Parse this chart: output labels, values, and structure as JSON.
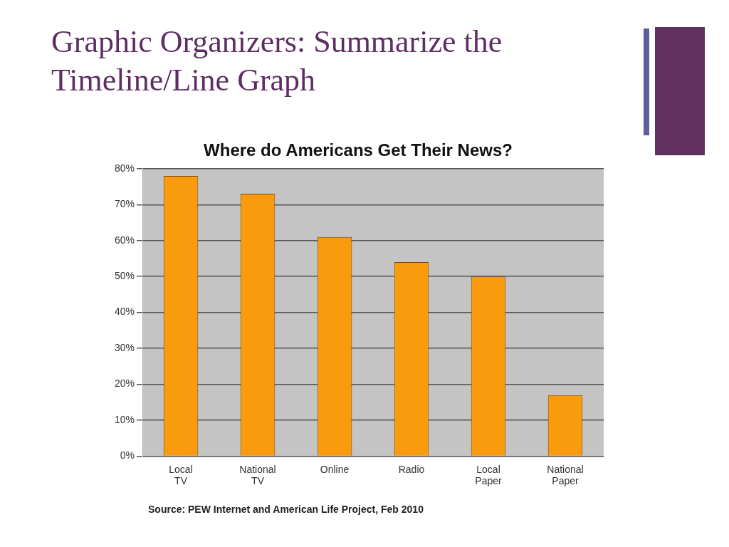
{
  "chart_data": {
    "type": "bar",
    "title": "Graphic Organizers: Summarize the Timeline/Line Graph",
    "subtitle": "Where do Americans Get Their News?",
    "categories": [
      "Local TV",
      "National TV",
      "Online",
      "Radio",
      "Local Paper",
      "National Paper"
    ],
    "values": [
      78,
      73,
      61,
      54,
      50,
      17
    ],
    "color": "#f99b0c",
    "ylim": [
      0,
      80
    ],
    "yticks": [
      {
        "value": 0,
        "label": "0%"
      },
      {
        "value": 10,
        "label": "10%"
      },
      {
        "value": 20,
        "label": "20%"
      },
      {
        "value": 30,
        "label": "30%"
      },
      {
        "value": 40,
        "label": "40%"
      },
      {
        "value": 50,
        "label": "50%"
      },
      {
        "value": 60,
        "label": "60%"
      },
      {
        "value": 70,
        "label": "70%"
      },
      {
        "value": 80,
        "label": "80%"
      }
    ],
    "grid": "y",
    "annotations": [
      "Source: PEW Internet and American Life Project, Feb 2010"
    ]
  }
}
